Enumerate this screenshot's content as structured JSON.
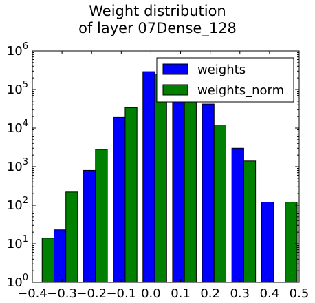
{
  "chart_data": {
    "type": "bar",
    "title_lines": [
      "Weight distribution",
      "of layer 07Dense_128"
    ],
    "xlabel": "",
    "ylabel": "",
    "xlim": [
      -0.4,
      0.5
    ],
    "ylim": [
      1,
      1000000
    ],
    "yscale": "log",
    "x_ticks": [
      "−0.4",
      "−0.3",
      "−0.2",
      "−0.1",
      "0.0",
      "0.1",
      "0.2",
      "0.3",
      "0.4",
      "0.5"
    ],
    "x_tick_values": [
      -0.4,
      -0.3,
      -0.2,
      -0.1,
      0.0,
      0.1,
      0.2,
      0.3,
      0.4,
      0.5
    ],
    "y_ticks": [
      {
        "value": 1,
        "base": "10",
        "exp": "0"
      },
      {
        "value": 10,
        "base": "10",
        "exp": "1"
      },
      {
        "value": 100,
        "base": "10",
        "exp": "2"
      },
      {
        "value": 1000,
        "base": "10",
        "exp": "3"
      },
      {
        "value": 10000,
        "base": "10",
        "exp": "4"
      },
      {
        "value": 100000,
        "base": "10",
        "exp": "5"
      },
      {
        "value": 1000000,
        "base": "10",
        "exp": "6"
      }
    ],
    "grid": false,
    "legend_position": "top-right",
    "series": [
      {
        "name": "weights",
        "color": "#0000ff",
        "bars": [
          {
            "x0": -0.327,
            "x1": -0.287,
            "value": 23
          },
          {
            "x0": -0.227,
            "x1": -0.187,
            "value": 800
          },
          {
            "x0": -0.127,
            "x1": -0.087,
            "value": 19000
          },
          {
            "x0": -0.027,
            "x1": 0.013,
            "value": 290000
          },
          {
            "x0": 0.073,
            "x1": 0.113,
            "value": 150000
          },
          {
            "x0": 0.173,
            "x1": 0.213,
            "value": 42000
          },
          {
            "x0": 0.273,
            "x1": 0.313,
            "value": 3000
          },
          {
            "x0": 0.373,
            "x1": 0.413,
            "value": 120
          }
        ]
      },
      {
        "name": "weights_norm",
        "color": "#008000",
        "bars": [
          {
            "x0": -0.367,
            "x1": -0.327,
            "value": 14
          },
          {
            "x0": -0.287,
            "x1": -0.247,
            "value": 220
          },
          {
            "x0": -0.187,
            "x1": -0.147,
            "value": 2800
          },
          {
            "x0": -0.087,
            "x1": -0.047,
            "value": 34000
          },
          {
            "x0": 0.013,
            "x1": 0.053,
            "value": 250000
          },
          {
            "x0": 0.113,
            "x1": 0.153,
            "value": 160000
          },
          {
            "x0": 0.213,
            "x1": 0.253,
            "value": 12000
          },
          {
            "x0": 0.313,
            "x1": 0.353,
            "value": 1400
          },
          {
            "x0": 0.453,
            "x1": 0.493,
            "value": 120
          }
        ]
      }
    ]
  }
}
